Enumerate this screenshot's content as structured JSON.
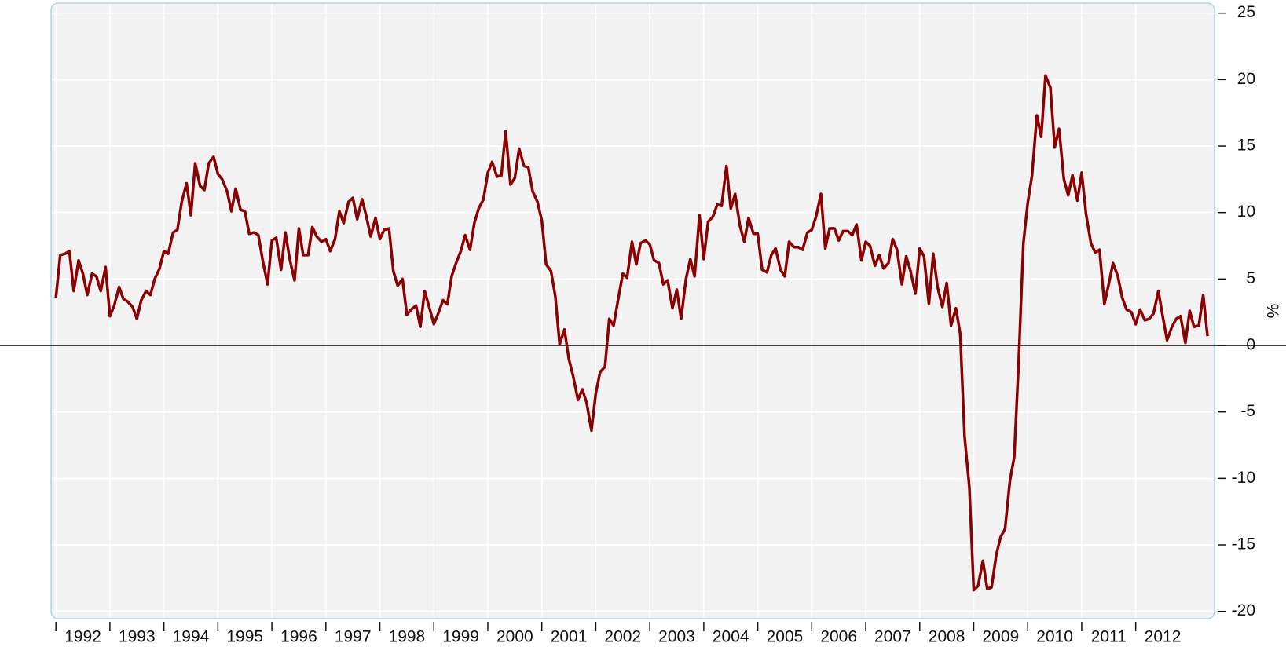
{
  "chart_data": {
    "type": "line",
    "y_label": "%",
    "color": "#8b0000",
    "grid": true,
    "x": [
      1992,
      1992.08,
      1992.17,
      1992.25,
      1992.33,
      1992.42,
      1992.5,
      1992.58,
      1992.67,
      1992.75,
      1992.83,
      1992.92,
      1993,
      1993.08,
      1993.17,
      1993.25,
      1993.33,
      1993.42,
      1993.5,
      1993.58,
      1993.67,
      1993.75,
      1993.83,
      1993.92,
      1994,
      1994.08,
      1994.17,
      1994.25,
      1994.33,
      1994.42,
      1994.5,
      1994.58,
      1994.67,
      1994.75,
      1994.83,
      1994.92,
      1995,
      1995.08,
      1995.17,
      1995.25,
      1995.33,
      1995.42,
      1995.5,
      1995.58,
      1995.67,
      1995.75,
      1995.83,
      1995.92,
      1996,
      1996.08,
      1996.17,
      1996.25,
      1996.33,
      1996.42,
      1996.5,
      1996.58,
      1996.67,
      1996.75,
      1996.83,
      1996.92,
      1997,
      1997.08,
      1997.17,
      1997.25,
      1997.33,
      1997.42,
      1997.5,
      1997.58,
      1997.67,
      1997.75,
      1997.83,
      1997.92,
      1998,
      1998.08,
      1998.17,
      1998.25,
      1998.33,
      1998.42,
      1998.5,
      1998.58,
      1998.67,
      1998.75,
      1998.83,
      1998.92,
      1999,
      1999.08,
      1999.17,
      1999.25,
      1999.33,
      1999.42,
      1999.5,
      1999.58,
      1999.67,
      1999.75,
      1999.83,
      1999.92,
      2000,
      2000.08,
      2000.17,
      2000.25,
      2000.33,
      2000.42,
      2000.5,
      2000.58,
      2000.67,
      2000.75,
      2000.83,
      2000.92,
      2001,
      2001.08,
      2001.17,
      2001.25,
      2001.33,
      2001.42,
      2001.5,
      2001.58,
      2001.67,
      2001.75,
      2001.83,
      2001.92,
      2002,
      2002.08,
      2002.17,
      2002.25,
      2002.33,
      2002.42,
      2002.5,
      2002.58,
      2002.67,
      2002.75,
      2002.83,
      2002.92,
      2003,
      2003.08,
      2003.17,
      2003.25,
      2003.33,
      2003.42,
      2003.5,
      2003.58,
      2003.67,
      2003.75,
      2003.83,
      2003.92,
      2004,
      2004.08,
      2004.17,
      2004.25,
      2004.33,
      2004.42,
      2004.5,
      2004.58,
      2004.67,
      2004.75,
      2004.83,
      2004.92,
      2005,
      2005.08,
      2005.17,
      2005.25,
      2005.33,
      2005.42,
      2005.5,
      2005.58,
      2005.67,
      2005.75,
      2005.83,
      2005.92,
      2006,
      2006.08,
      2006.17,
      2006.25,
      2006.33,
      2006.42,
      2006.5,
      2006.58,
      2006.67,
      2006.75,
      2006.83,
      2006.92,
      2007,
      2007.08,
      2007.17,
      2007.25,
      2007.33,
      2007.42,
      2007.5,
      2007.58,
      2007.67,
      2007.75,
      2007.83,
      2007.92,
      2008,
      2008.08,
      2008.17,
      2008.25,
      2008.33,
      2008.42,
      2008.5,
      2008.58,
      2008.67,
      2008.75,
      2008.83,
      2008.92,
      2009,
      2009.08,
      2009.17,
      2009.25,
      2009.33,
      2009.42,
      2009.5,
      2009.58,
      2009.67,
      2009.75,
      2009.83,
      2009.92,
      2010,
      2010.08,
      2010.17,
      2010.25,
      2010.33,
      2010.42,
      2010.5,
      2010.58,
      2010.67,
      2010.75,
      2010.83,
      2010.92,
      2011,
      2011.08,
      2011.17,
      2011.25,
      2011.33,
      2011.42,
      2011.5,
      2011.58,
      2011.67,
      2011.75,
      2011.83,
      2011.92,
      2012,
      2012.08,
      2012.17,
      2012.25,
      2012.33,
      2012.42,
      2012.5,
      2012.58,
      2012.67,
      2012.75,
      2012.83,
      2012.92,
      2013,
      2013.08,
      2013.17,
      2013.25,
      2013.33
    ],
    "values": [
      3.6,
      6.8,
      6.9,
      7.1,
      4.1,
      6.4,
      5.4,
      3.8,
      5.4,
      5.2,
      4.1,
      5.9,
      2.2,
      3.0,
      4.4,
      3.5,
      3.3,
      2.9,
      2.0,
      3.4,
      4.1,
      3.8,
      5.0,
      5.8,
      7.1,
      6.9,
      8.5,
      8.7,
      10.8,
      12.2,
      9.8,
      13.7,
      12.0,
      11.7,
      13.7,
      14.2,
      12.9,
      12.5,
      11.6,
      10.1,
      11.8,
      10.2,
      10.1,
      8.4,
      8.5,
      8.3,
      6.4,
      4.6,
      7.9,
      8.1,
      5.7,
      8.5,
      6.5,
      4.9,
      8.8,
      6.8,
      6.8,
      8.9,
      8.2,
      7.8,
      8.0,
      7.1,
      8.0,
      10.1,
      9.2,
      10.8,
      11.1,
      9.5,
      11.0,
      9.7,
      8.2,
      9.6,
      8.0,
      8.7,
      8.8,
      5.6,
      4.5,
      5.0,
      2.3,
      2.7,
      3.0,
      1.4,
      4.1,
      2.8,
      1.6,
      2.4,
      3.4,
      3.1,
      5.2,
      6.3,
      7.1,
      8.3,
      7.2,
      9.2,
      10.3,
      11.0,
      13.0,
      13.8,
      12.7,
      12.8,
      16.1,
      12.1,
      12.6,
      14.8,
      13.5,
      13.4,
      11.6,
      10.8,
      9.4,
      6.1,
      5.6,
      3.7,
      0.1,
      1.2,
      -1.0,
      -2.3,
      -4.1,
      -3.3,
      -4.3,
      -6.4,
      -3.6,
      -2.0,
      -1.6,
      2.0,
      1.5,
      3.6,
      5.4,
      5.1,
      7.8,
      6.1,
      7.7,
      7.9,
      7.6,
      6.4,
      6.2,
      4.6,
      4.9,
      2.8,
      4.2,
      2.0,
      5.0,
      6.5,
      5.2,
      9.8,
      6.5,
      9.3,
      9.7,
      10.6,
      10.5,
      13.5,
      10.3,
      11.4,
      9.0,
      7.8,
      9.6,
      8.4,
      8.4,
      5.7,
      5.5,
      6.8,
      7.3,
      5.7,
      5.2,
      7.8,
      7.4,
      7.4,
      7.2,
      8.5,
      8.7,
      9.7,
      11.4,
      7.3,
      8.8,
      8.8,
      7.9,
      8.6,
      8.6,
      8.3,
      9.1,
      6.4,
      7.8,
      7.5,
      6.0,
      6.8,
      5.8,
      6.2,
      8.0,
      7.2,
      4.6,
      6.7,
      5.6,
      3.9,
      7.3,
      6.7,
      3.1,
      6.9,
      4.4,
      2.9,
      4.7,
      1.5,
      2.8,
      0.9,
      -6.8,
      -10.7,
      -18.4,
      -18.1,
      -16.2,
      -18.3,
      -18.2,
      -15.7,
      -14.4,
      -13.8,
      -10.2,
      -8.4,
      -1.5,
      7.7,
      10.7,
      12.8,
      17.3,
      15.7,
      20.3,
      19.4,
      14.9,
      16.3,
      12.5,
      11.3,
      12.8,
      10.9,
      13.0,
      9.9,
      7.7,
      7.0,
      7.2,
      3.1,
      4.6,
      6.2,
      5.2,
      3.6,
      2.7,
      2.5,
      1.6,
      2.7,
      1.9,
      2.0,
      2.4,
      4.1,
      2.2,
      0.4,
      1.4,
      2.0,
      2.2,
      0.2,
      2.6,
      1.4,
      1.5,
      3.8,
      0.7
    ],
    "xlim": [
      1991.91,
      2013.46
    ],
    "xticks": [
      1992,
      1993,
      1994,
      1995,
      1996,
      1997,
      1998,
      1999,
      2000,
      2001,
      2002,
      2003,
      2004,
      2005,
      2006,
      2007,
      2008,
      2009,
      2010,
      2011,
      2012
    ],
    "ylim": [
      -20.55,
      25.75
    ],
    "yticks": [
      -20,
      -15,
      -10,
      -5,
      0,
      5,
      10,
      15,
      20,
      25
    ]
  }
}
